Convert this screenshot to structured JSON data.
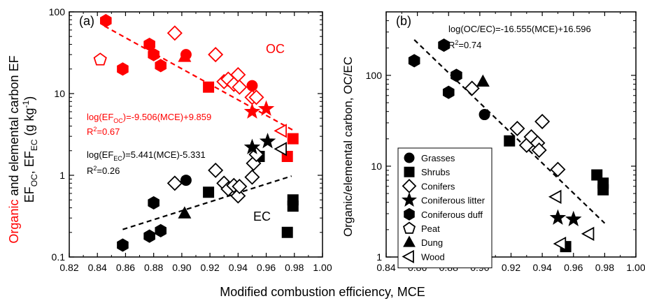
{
  "figure": {
    "shared_xlabel": "Modified combustion efficiency, MCE"
  },
  "chart_data": [
    {
      "panel": "(a)",
      "type": "scatter",
      "x_scale": "linear",
      "y_scale": "log",
      "xlim": [
        0.82,
        1.0
      ],
      "ylim": [
        0.1,
        100
      ],
      "xticks": [
        "0.82",
        "0.84",
        "0.86",
        "0.88",
        "0.90",
        "0.92",
        "0.94",
        "0.96",
        "0.98",
        "1.00"
      ],
      "yticks": [
        "0.1",
        "1",
        "10",
        "100"
      ],
      "ylabel": {
        "part1": "Organic",
        "part2": " and elemental carbon EF",
        "line2_a": "EF",
        "line2_a_sub": "OC",
        "line2_b": ", EF",
        "line2_b_sub": "EC",
        "line2_c": " (g kg",
        "line2_c_sup": "-1",
        "line2_d": ")"
      },
      "colors": {
        "OC": "#ff0000",
        "EC": "#000000"
      },
      "group_labels": {
        "OC": "OC",
        "EC": "EC"
      },
      "annotations": {
        "oc_eq_pre": "log(EF",
        "oc_eq_sub": "OC",
        "oc_eq_post": ")=-9.506(MCE)+9.859",
        "oc_r2_pre": "R",
        "oc_r2_sup": "2",
        "oc_r2_post": "=0.67",
        "ec_eq_pre": "log(EF",
        "ec_eq_sub": "EC",
        "ec_eq_post": ")=5.441(MCE)-5.331",
        "ec_r2_pre": "R",
        "ec_r2_sup": "2",
        "ec_r2_post": "=0.26"
      },
      "fits": [
        {
          "group": "OC",
          "slope": -9.506,
          "intercept": 9.859,
          "x_range": [
            0.845,
            0.98
          ]
        },
        {
          "group": "EC",
          "slope": 5.441,
          "intercept": -5.331,
          "x_range": [
            0.858,
            0.978
          ]
        }
      ],
      "series": [
        {
          "group": "OC",
          "marker": "circle",
          "fill": true,
          "points": [
            [
              0.903,
              30
            ],
            [
              0.95,
              12.5
            ]
          ]
        },
        {
          "group": "OC",
          "marker": "square",
          "fill": true,
          "points": [
            [
              0.919,
              12
            ],
            [
              0.975,
              1.7
            ],
            [
              0.979,
              2.8
            ]
          ]
        },
        {
          "group": "OC",
          "marker": "diamond",
          "fill": false,
          "points": [
            [
              0.895,
              55
            ],
            [
              0.924,
              30
            ],
            [
              0.93,
              14
            ],
            [
              0.933,
              15
            ],
            [
              0.937,
              13
            ],
            [
              0.94,
              17
            ],
            [
              0.941,
              12
            ],
            [
              0.95,
              9
            ],
            [
              0.953,
              9
            ]
          ]
        },
        {
          "group": "OC",
          "marker": "star",
          "fill": true,
          "points": [
            [
              0.95,
              6
            ],
            [
              0.96,
              6.5
            ]
          ]
        },
        {
          "group": "OC",
          "marker": "hexagon",
          "fill": true,
          "points": [
            [
              0.846,
              78
            ],
            [
              0.858,
              20
            ],
            [
              0.877,
              40
            ],
            [
              0.88,
              30
            ],
            [
              0.885,
              22
            ]
          ]
        },
        {
          "group": "OC",
          "marker": "pentagon",
          "fill": false,
          "points": [
            [
              0.842,
              26
            ]
          ]
        },
        {
          "group": "OC",
          "marker": "triangle",
          "fill": true,
          "points": [
            [
              0.902,
              28
            ]
          ]
        },
        {
          "group": "OC",
          "marker": "lefttriangle",
          "fill": false,
          "points": [
            [
              0.971,
              3.5
            ]
          ]
        },
        {
          "group": "EC",
          "marker": "circle",
          "fill": true,
          "points": [
            [
              0.903,
              0.87
            ]
          ]
        },
        {
          "group": "EC",
          "marker": "square",
          "fill": true,
          "points": [
            [
              0.919,
              0.62
            ],
            [
              0.955,
              1.7
            ],
            [
              0.975,
              0.2
            ],
            [
              0.979,
              0.42
            ],
            [
              0.979,
              0.5
            ]
          ]
        },
        {
          "group": "EC",
          "marker": "diamond",
          "fill": false,
          "points": [
            [
              0.895,
              0.8
            ],
            [
              0.924,
              1.15
            ],
            [
              0.93,
              0.8
            ],
            [
              0.933,
              0.68
            ],
            [
              0.937,
              0.75
            ],
            [
              0.94,
              0.56
            ],
            [
              0.941,
              0.73
            ],
            [
              0.95,
              0.95
            ],
            [
              0.951,
              1.4
            ],
            [
              0.953,
              1.8
            ]
          ]
        },
        {
          "group": "EC",
          "marker": "star",
          "fill": true,
          "points": [
            [
              0.95,
              2.2
            ],
            [
              0.961,
              2.6
            ]
          ]
        },
        {
          "group": "EC",
          "marker": "hexagon",
          "fill": true,
          "points": [
            [
              0.858,
              0.14
            ],
            [
              0.877,
              0.18
            ],
            [
              0.88,
              0.46
            ],
            [
              0.885,
              0.21
            ]
          ]
        },
        {
          "group": "EC",
          "marker": "triangle",
          "fill": true,
          "points": [
            [
              0.902,
              0.34
            ]
          ]
        },
        {
          "group": "EC",
          "marker": "lefttriangle",
          "fill": false,
          "points": [
            [
              0.971,
              2.1
            ]
          ]
        }
      ]
    },
    {
      "panel": "(b)",
      "type": "scatter",
      "x_scale": "linear",
      "y_scale": "log",
      "xlim": [
        0.84,
        1.0
      ],
      "ylim": [
        1,
        500
      ],
      "xticks": [
        "0.84",
        "0.86",
        "0.88",
        "0.90",
        "0.92",
        "0.94",
        "0.96",
        "0.98",
        "1.00"
      ],
      "yticks": [
        "1",
        "10",
        "100"
      ],
      "ylabel": "Organic/elemental carbon, OC/EC",
      "annotations": {
        "eq": "log(OC/EC)=-16.555(MCE)+16.596",
        "r2_pre": "R",
        "r2_sup": "2",
        "r2_post": "=0.74"
      },
      "fits": [
        {
          "slope": -16.555,
          "intercept": 16.596,
          "x_range": [
            0.858,
            0.98
          ]
        }
      ],
      "legend": {
        "placement": "bottom-left",
        "entries": [
          {
            "marker": "circle",
            "fill": true,
            "label": "Grasses"
          },
          {
            "marker": "square",
            "fill": true,
            "label": "Shrubs"
          },
          {
            "marker": "diamond",
            "fill": false,
            "label": "Conifers"
          },
          {
            "marker": "star",
            "fill": true,
            "label": "Coniferous litter"
          },
          {
            "marker": "hexagon",
            "fill": true,
            "label": "Coniferous duff"
          },
          {
            "marker": "pentagon",
            "fill": false,
            "label": "Peat"
          },
          {
            "marker": "triangle",
            "fill": true,
            "label": "Dung"
          },
          {
            "marker": "lefttriangle",
            "fill": false,
            "label": "Wood"
          }
        ]
      },
      "series": [
        {
          "name": "Grasses",
          "marker": "circle",
          "fill": true,
          "points": [
            [
              0.903,
              37
            ]
          ]
        },
        {
          "name": "Shrubs",
          "marker": "square",
          "fill": true,
          "points": [
            [
              0.919,
              19
            ],
            [
              0.955,
              1.3
            ],
            [
              0.975,
              8
            ],
            [
              0.979,
              5.5
            ],
            [
              0.979,
              6.5
            ]
          ]
        },
        {
          "name": "Conifers",
          "marker": "diamond",
          "fill": false,
          "points": [
            [
              0.895,
              72
            ],
            [
              0.924,
              26
            ],
            [
              0.93,
              17
            ],
            [
              0.933,
              21
            ],
            [
              0.937,
              18
            ],
            [
              0.938,
              15
            ],
            [
              0.94,
              31
            ],
            [
              0.95,
              9.2
            ]
          ]
        },
        {
          "name": "Coniferous litter",
          "marker": "star",
          "fill": true,
          "points": [
            [
              0.95,
              2.7
            ],
            [
              0.96,
              2.6
            ]
          ]
        },
        {
          "name": "Coniferous duff",
          "marker": "hexagon",
          "fill": true,
          "points": [
            [
              0.858,
              145
            ],
            [
              0.877,
              215
            ],
            [
              0.88,
              65
            ],
            [
              0.885,
              100
            ]
          ]
        },
        {
          "name": "Dung",
          "marker": "triangle",
          "fill": true,
          "points": [
            [
              0.902,
              85
            ]
          ]
        },
        {
          "name": "Wood",
          "marker": "lefttriangle",
          "fill": false,
          "points": [
            [
              0.949,
              4.6
            ],
            [
              0.952,
              1.4
            ],
            [
              0.97,
              1.8
            ]
          ]
        }
      ]
    }
  ]
}
